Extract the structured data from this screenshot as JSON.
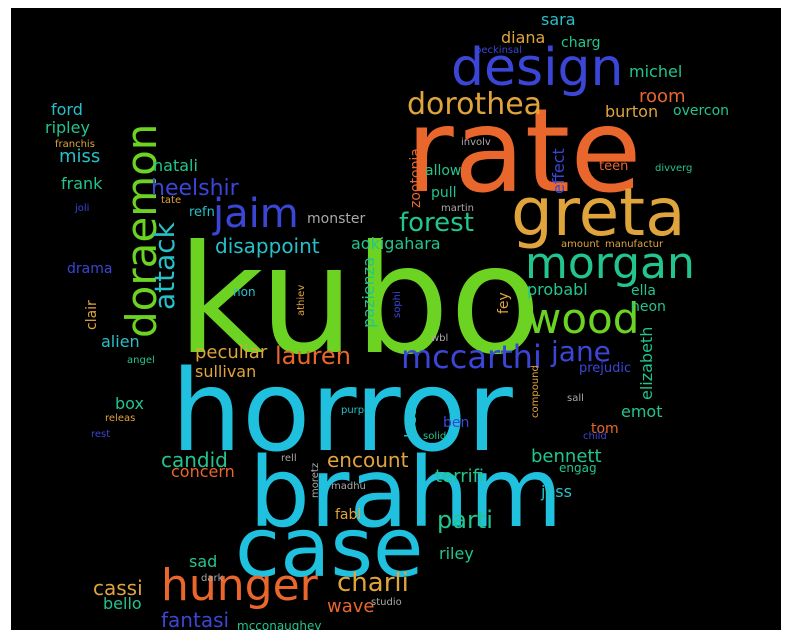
{
  "colors": {
    "background": "#000000",
    "frame": "#ffffff",
    "lime": "#6cd322",
    "cyan": "#1fc1de",
    "orange": "#e9662c",
    "blue": "#3b46d6",
    "green": "#22c58e",
    "gold": "#e0a43c",
    "teal": "#27c0c9",
    "grey": "#a9a9a9"
  },
  "words": [
    {
      "text": "kubo",
      "color": "lime"
    },
    {
      "text": "horror",
      "color": "cyan"
    },
    {
      "text": "rate",
      "color": "orange"
    },
    {
      "text": "brahm",
      "color": "cyan"
    },
    {
      "text": "case",
      "color": "cyan"
    },
    {
      "text": "greta",
      "color": "gold"
    },
    {
      "text": "design",
      "color": "blue"
    },
    {
      "text": "doraemon",
      "color": "lime"
    },
    {
      "text": "morgan",
      "color": "green"
    },
    {
      "text": "hunger",
      "color": "orange"
    },
    {
      "text": "dorothea",
      "color": "gold"
    },
    {
      "text": "wood",
      "color": "lime"
    },
    {
      "text": "jaim",
      "color": "blue"
    },
    {
      "text": "forest",
      "color": "green"
    },
    {
      "text": "mccarthi",
      "color": "blue"
    },
    {
      "text": "attack",
      "color": "teal"
    },
    {
      "text": "charli",
      "color": "gold"
    },
    {
      "text": "lauren",
      "color": "orange"
    },
    {
      "text": "jane",
      "color": "blue"
    },
    {
      "text": "parti",
      "color": "green"
    },
    {
      "text": "heelshir",
      "color": "blue"
    },
    {
      "text": "disappoint",
      "color": "teal"
    },
    {
      "text": "aokigahara",
      "color": "green"
    },
    {
      "text": "monster",
      "color": "grey"
    },
    {
      "text": "natali",
      "color": "green"
    },
    {
      "text": "miss",
      "color": "teal"
    },
    {
      "text": "frank",
      "color": "green"
    },
    {
      "text": "ford",
      "color": "teal"
    },
    {
      "text": "ripley",
      "color": "green"
    },
    {
      "text": "room",
      "color": "orange"
    },
    {
      "text": "michel",
      "color": "green"
    },
    {
      "text": "burton",
      "color": "gold"
    },
    {
      "text": "overcon",
      "color": "green"
    },
    {
      "text": "sara",
      "color": "teal"
    },
    {
      "text": "diana",
      "color": "gold"
    },
    {
      "text": "charg",
      "color": "green"
    },
    {
      "text": "allow",
      "color": "green"
    },
    {
      "text": "pull",
      "color": "green"
    },
    {
      "text": "effect",
      "color": "blue"
    },
    {
      "text": "teen",
      "color": "orange"
    },
    {
      "text": "divverg",
      "color": "green"
    },
    {
      "text": "involv",
      "color": "grey"
    },
    {
      "text": "zootopia",
      "color": "orange"
    },
    {
      "text": "refn",
      "color": "teal"
    },
    {
      "text": "drama",
      "color": "blue"
    },
    {
      "text": "clair",
      "color": "gold"
    },
    {
      "text": "non",
      "color": "teal"
    },
    {
      "text": "probabl",
      "color": "green"
    },
    {
      "text": "ella",
      "color": "green"
    },
    {
      "text": "neon",
      "color": "green"
    },
    {
      "text": "fey",
      "color": "gold"
    },
    {
      "text": "pazienza",
      "color": "green"
    },
    {
      "text": "alien",
      "color": "teal"
    },
    {
      "text": "peculiar",
      "color": "gold"
    },
    {
      "text": "sullivan",
      "color": "gold"
    },
    {
      "text": "elizabeth",
      "color": "green"
    },
    {
      "text": "prejudic",
      "color": "blue"
    },
    {
      "text": "box",
      "color": "green"
    },
    {
      "text": "emot",
      "color": "green"
    },
    {
      "text": "tom",
      "color": "orange"
    },
    {
      "text": "loss",
      "color": "teal"
    },
    {
      "text": "ben",
      "color": "blue"
    },
    {
      "text": "candid",
      "color": "green"
    },
    {
      "text": "encount",
      "color": "gold"
    },
    {
      "text": "bennett",
      "color": "green"
    },
    {
      "text": "concern",
      "color": "orange"
    },
    {
      "text": "terrifi",
      "color": "green"
    },
    {
      "text": "jess",
      "color": "teal"
    },
    {
      "text": "fabl",
      "color": "gold"
    },
    {
      "text": "riley",
      "color": "green"
    },
    {
      "text": "sad",
      "color": "green"
    },
    {
      "text": "cassi",
      "color": "gold"
    },
    {
      "text": "bello",
      "color": "green"
    },
    {
      "text": "fantasi",
      "color": "blue"
    },
    {
      "text": "wave",
      "color": "orange"
    },
    {
      "text": "mcconaughey",
      "color": "green"
    },
    {
      "text": "studio",
      "color": "grey"
    },
    {
      "text": "dark",
      "color": "grey"
    },
    {
      "text": "engag",
      "color": "green"
    },
    {
      "text": "child",
      "color": "blue"
    },
    {
      "text": "rest",
      "color": "blue"
    },
    {
      "text": "releas",
      "color": "gold"
    },
    {
      "text": "franchis",
      "color": "gold"
    },
    {
      "text": "joli",
      "color": "blue"
    },
    {
      "text": "tate",
      "color": "gold"
    },
    {
      "text": "martin",
      "color": "grey"
    },
    {
      "text": "amount",
      "color": "gold"
    },
    {
      "text": "manufactur",
      "color": "gold"
    },
    {
      "text": "beckinsal",
      "color": "blue"
    },
    {
      "text": "sophi",
      "color": "blue"
    },
    {
      "text": "athiev",
      "color": "gold"
    },
    {
      "text": "angel",
      "color": "green"
    },
    {
      "text": "purpos",
      "color": "teal"
    },
    {
      "text": "compound",
      "color": "gold"
    },
    {
      "text": "sall",
      "color": "grey"
    },
    {
      "text": "solid",
      "color": "green"
    },
    {
      "text": "rell",
      "color": "grey"
    },
    {
      "text": "madhu",
      "color": "grey"
    },
    {
      "text": "moretz",
      "color": "grey"
    },
    {
      "text": "wbl",
      "color": "grey"
    }
  ]
}
